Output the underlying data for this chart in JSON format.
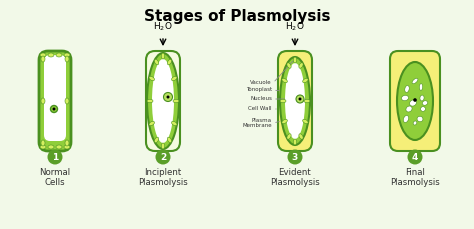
{
  "title": "Stages of Plasmolysis",
  "title_fontsize": 11,
  "title_fontweight": "bold",
  "bg_color": "#f2f9e8",
  "cell_wall_dark": "#4a9020",
  "cytoplasm_color": "#8fce3a",
  "cytoplasm_light": "#b8e060",
  "chloroplast_color": "#d4ef60",
  "yellow_bg": "#f0e850",
  "yellow_cell": "#f5ef78",
  "number_bg": "#5a9e28",
  "number_color": "#ffffff",
  "label_color": "#333333",
  "annotation_color": "#333333",
  "stages": [
    "Normal\nCells",
    "Inciplent\nPlasmolysis",
    "Evident\nPlasmolysis",
    "Final\nPlasmolysis"
  ],
  "stage_numbers": [
    "1",
    "2",
    "3",
    "4"
  ],
  "annotations": [
    "Vacuole",
    "Tonoplast",
    "Nucleus",
    "Cell Wall",
    "Plasma\nMembrane"
  ]
}
